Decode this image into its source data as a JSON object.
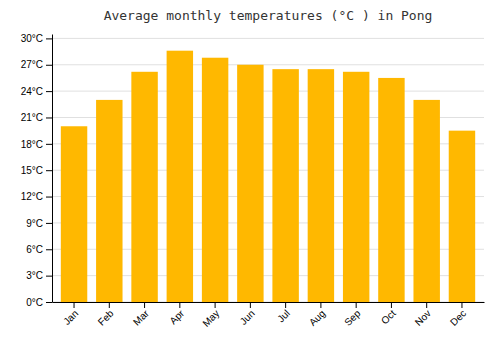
{
  "chart_data": {
    "type": "bar",
    "title": "Average monthly temperatures (°C ) in Pong",
    "categories": [
      "Jan",
      "Feb",
      "Mar",
      "Apr",
      "May",
      "Jun",
      "Jul",
      "Aug",
      "Sep",
      "Oct",
      "Nov",
      "Dec"
    ],
    "values": [
      20.0,
      23.0,
      26.2,
      28.6,
      27.8,
      27.0,
      26.5,
      26.5,
      26.2,
      25.5,
      23.0,
      19.5
    ],
    "color": "#FFB800",
    "ylim": [
      0,
      30.5
    ],
    "yticks": [
      {
        "value": 0,
        "label": "0°C"
      },
      {
        "value": 3,
        "label": "3°C"
      },
      {
        "value": 6,
        "label": "6°C"
      },
      {
        "value": 9,
        "label": "9°C"
      },
      {
        "value": 12,
        "label": "12°C"
      },
      {
        "value": 15,
        "label": "15°C"
      },
      {
        "value": 18,
        "label": "18°C"
      },
      {
        "value": 21,
        "label": "21°C"
      },
      {
        "value": 24,
        "label": "24°C"
      },
      {
        "value": 27,
        "label": "27°C"
      },
      {
        "value": 30,
        "label": "30°C"
      }
    ],
    "grid": true
  }
}
